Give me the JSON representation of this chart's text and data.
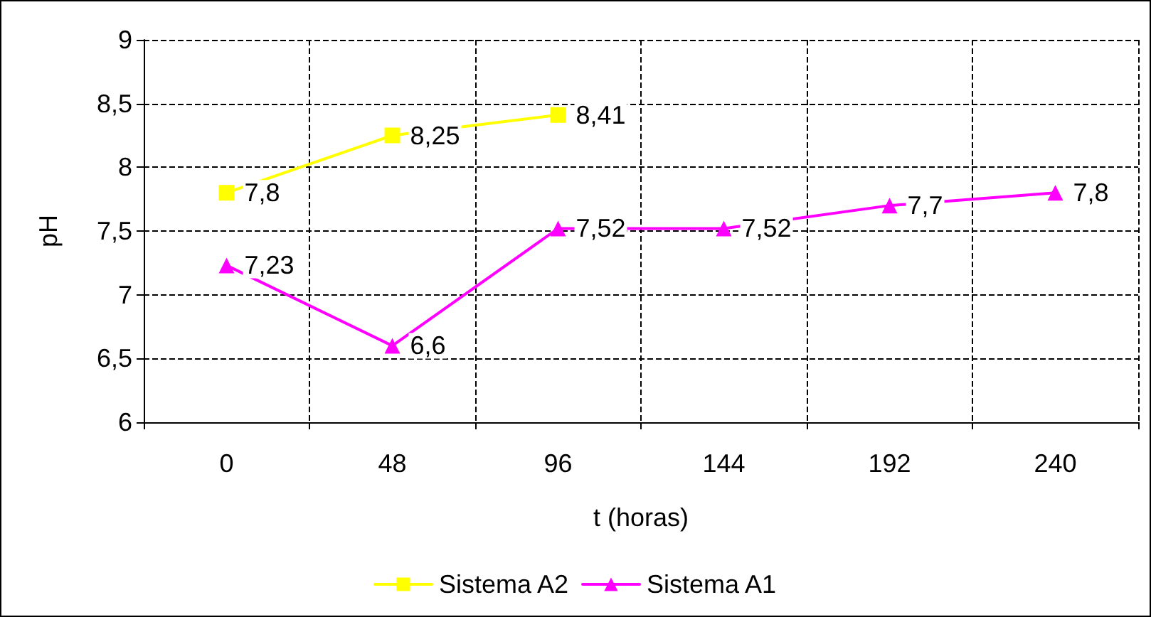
{
  "chart_data": {
    "type": "line",
    "xlabel": "t (horas)",
    "ylabel": "pH",
    "categories": [
      "0",
      "48",
      "96",
      "144",
      "192",
      "240"
    ],
    "ylim": [
      6,
      9
    ],
    "yticks": [
      6,
      {
        "value": 6.5,
        "label": "6,5"
      },
      7,
      {
        "value": 7.5,
        "label": "7,5"
      },
      8,
      {
        "value": 8.5,
        "label": "8,5"
      },
      9
    ],
    "grid": true,
    "legend": "bottom",
    "series": [
      {
        "name": "Sistema A2",
        "color": "#ffff00",
        "marker": "square",
        "values": [
          7.8,
          8.25,
          8.41,
          null,
          null,
          null
        ],
        "value_labels": [
          "7,8",
          "8,25",
          "8,41",
          null,
          null,
          null
        ]
      },
      {
        "name": "Sistema A1",
        "color": "#ff00ff",
        "marker": "triangle",
        "values": [
          7.23,
          6.6,
          7.52,
          7.52,
          7.7,
          7.8
        ],
        "value_labels": [
          "7,23",
          "6,6",
          "7,52",
          "7,52",
          "7,7",
          "7,8"
        ]
      }
    ]
  }
}
